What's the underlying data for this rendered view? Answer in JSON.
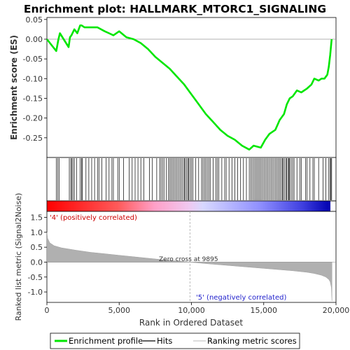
{
  "title": "Enrichment plot: HALLMARK_MTORC1_SIGNALING",
  "chart_data": [
    {
      "type": "line",
      "panel": "enrichment",
      "ylabel": "Enrichment score (ES)",
      "ylim": [
        -0.3,
        0.055
      ],
      "xlim": [
        0,
        20000
      ],
      "yticks": [
        0.05,
        0.0,
        -0.05,
        -0.1,
        -0.15,
        -0.2,
        -0.25
      ],
      "ytick_labels": [
        "0.05",
        "0.00",
        "-0.05",
        "-0.10",
        "-0.15",
        "-0.20",
        "-0.25"
      ],
      "series": [
        {
          "name": "Enrichment profile",
          "color": "#00e600",
          "x": [
            0,
            650,
            800,
            900,
            1500,
            1600,
            1700,
            1900,
            2100,
            2300,
            2400,
            2600,
            3000,
            3200,
            3500,
            4000,
            4300,
            4600,
            5000,
            5500,
            6000,
            6500,
            7000,
            7500,
            8000,
            8500,
            9000,
            9500,
            10000,
            10500,
            11000,
            11500,
            12000,
            12500,
            13000,
            13500,
            14000,
            14300,
            14800,
            15100,
            15400,
            15800,
            16100,
            16400,
            16600,
            16800,
            17000,
            17300,
            17600,
            18000,
            18300,
            18500,
            18800,
            19000,
            19200,
            19400,
            19500,
            19600,
            19700
          ],
          "y": [
            0.0,
            -0.03,
            0.0,
            0.015,
            -0.02,
            0.005,
            0.01,
            0.025,
            0.015,
            0.035,
            0.035,
            0.03,
            0.03,
            0.03,
            0.03,
            0.02,
            0.015,
            0.01,
            0.02,
            0.005,
            0.0,
            -0.01,
            -0.025,
            -0.045,
            -0.06,
            -0.075,
            -0.095,
            -0.115,
            -0.14,
            -0.165,
            -0.19,
            -0.21,
            -0.23,
            -0.245,
            -0.255,
            -0.27,
            -0.28,
            -0.27,
            -0.275,
            -0.255,
            -0.24,
            -0.23,
            -0.205,
            -0.19,
            -0.165,
            -0.15,
            -0.145,
            -0.13,
            -0.135,
            -0.125,
            -0.115,
            -0.1,
            -0.105,
            -0.1,
            -0.1,
            -0.09,
            -0.07,
            -0.04,
            0.0
          ]
        }
      ]
    },
    {
      "type": "scatter",
      "panel": "hits",
      "series": [
        {
          "name": "Hits",
          "color": "#000000",
          "x": [
            650,
            750,
            850,
            1550,
            1650,
            1720,
            1800,
            1900,
            2050,
            2300,
            2400,
            2450,
            2700,
            2900,
            3100,
            3300,
            3500,
            3600,
            3800,
            4100,
            4300,
            4500,
            4600,
            4900,
            5000,
            5300,
            5700,
            5900,
            6100,
            6300,
            6500,
            6700,
            7100,
            7300,
            7600,
            7800,
            7900,
            8000,
            8100,
            8250,
            8400,
            8500,
            8600,
            8700,
            8800,
            8900,
            9000,
            9100,
            9200,
            9300,
            9400,
            9500,
            9550,
            9650,
            9750,
            9800,
            9900,
            10000,
            10100,
            10300,
            10500,
            10700,
            10800,
            10900,
            11000,
            11100,
            11200,
            11300,
            11500,
            11700,
            11800,
            11900,
            12100,
            12300,
            12400,
            12600,
            12800,
            13000,
            13200,
            13400,
            13600,
            13800,
            14000,
            14100,
            14200,
            14300,
            14400,
            14500,
            14600,
            14700,
            14800,
            14900,
            15000,
            15100,
            15200,
            15300,
            15400,
            15500,
            15600,
            15700,
            15800,
            15900,
            16000,
            16100,
            16200,
            16300,
            16350,
            16450,
            16550,
            16600,
            16700,
            16750,
            16800,
            16900,
            17000,
            17100,
            17300,
            17500,
            17600,
            17900,
            18000,
            18200,
            18400,
            18500,
            18800,
            19100,
            19300,
            19500,
            19600,
            19650,
            19700
          ]
        }
      ]
    },
    {
      "type": "area",
      "panel": "ranked-list",
      "ylabel": "Ranked list metric (Signal2Noise)",
      "xlabel": "Rank in Ordered Dataset",
      "ylim": [
        -1.35,
        1.7
      ],
      "xlim": [
        0,
        20000
      ],
      "yticks": [
        1.5,
        1.0,
        0.5,
        0.0,
        -0.5,
        -1.0
      ],
      "ytick_labels": [
        "1.5",
        "1.0",
        "0.5",
        "0.0",
        "-0.5",
        "-1.0"
      ],
      "xticks": [
        0,
        5000,
        10000,
        15000,
        20000
      ],
      "xtick_labels": [
        "0",
        "5,000",
        "10,000",
        "15,000",
        "20,000"
      ],
      "series": [
        {
          "name": "Ranking metric scores",
          "color": "#b0b0b0",
          "x": [
            0,
            50,
            200,
            500,
            1000,
            2000,
            3000,
            4000,
            5000,
            6000,
            7000,
            8000,
            9000,
            9895,
            11000,
            12000,
            13000,
            14000,
            15000,
            16000,
            17000,
            18000,
            18500,
            19000,
            19300,
            19500,
            19600,
            19680,
            19720
          ],
          "y": [
            1.0,
            0.8,
            0.65,
            0.55,
            0.48,
            0.4,
            0.33,
            0.28,
            0.23,
            0.18,
            0.13,
            0.08,
            0.04,
            0.0,
            -0.05,
            -0.09,
            -0.13,
            -0.17,
            -0.21,
            -0.25,
            -0.29,
            -0.34,
            -0.38,
            -0.44,
            -0.5,
            -0.58,
            -0.66,
            -0.85,
            -1.3
          ]
        }
      ],
      "annotations": {
        "positive_label": "'4' (positively correlated)",
        "negative_label": "'5' (negatively correlated)",
        "zero_cross": "Zero cross at 9895",
        "zero_cross_x": 9895
      }
    }
  ],
  "colorbar": {
    "stops": [
      "#ff0000",
      "#ff6060",
      "#ffb0d0",
      "#d8d8ff",
      "#6060ff",
      "#0000c0"
    ]
  },
  "legend": {
    "items": [
      {
        "label": "Enrichment profile",
        "color": "#00e600",
        "kind": "thick-line"
      },
      {
        "label": "Hits",
        "color": "#000000",
        "kind": "line"
      },
      {
        "label": "Ranking metric scores",
        "color": "#c8c8c8",
        "kind": "line"
      }
    ]
  }
}
